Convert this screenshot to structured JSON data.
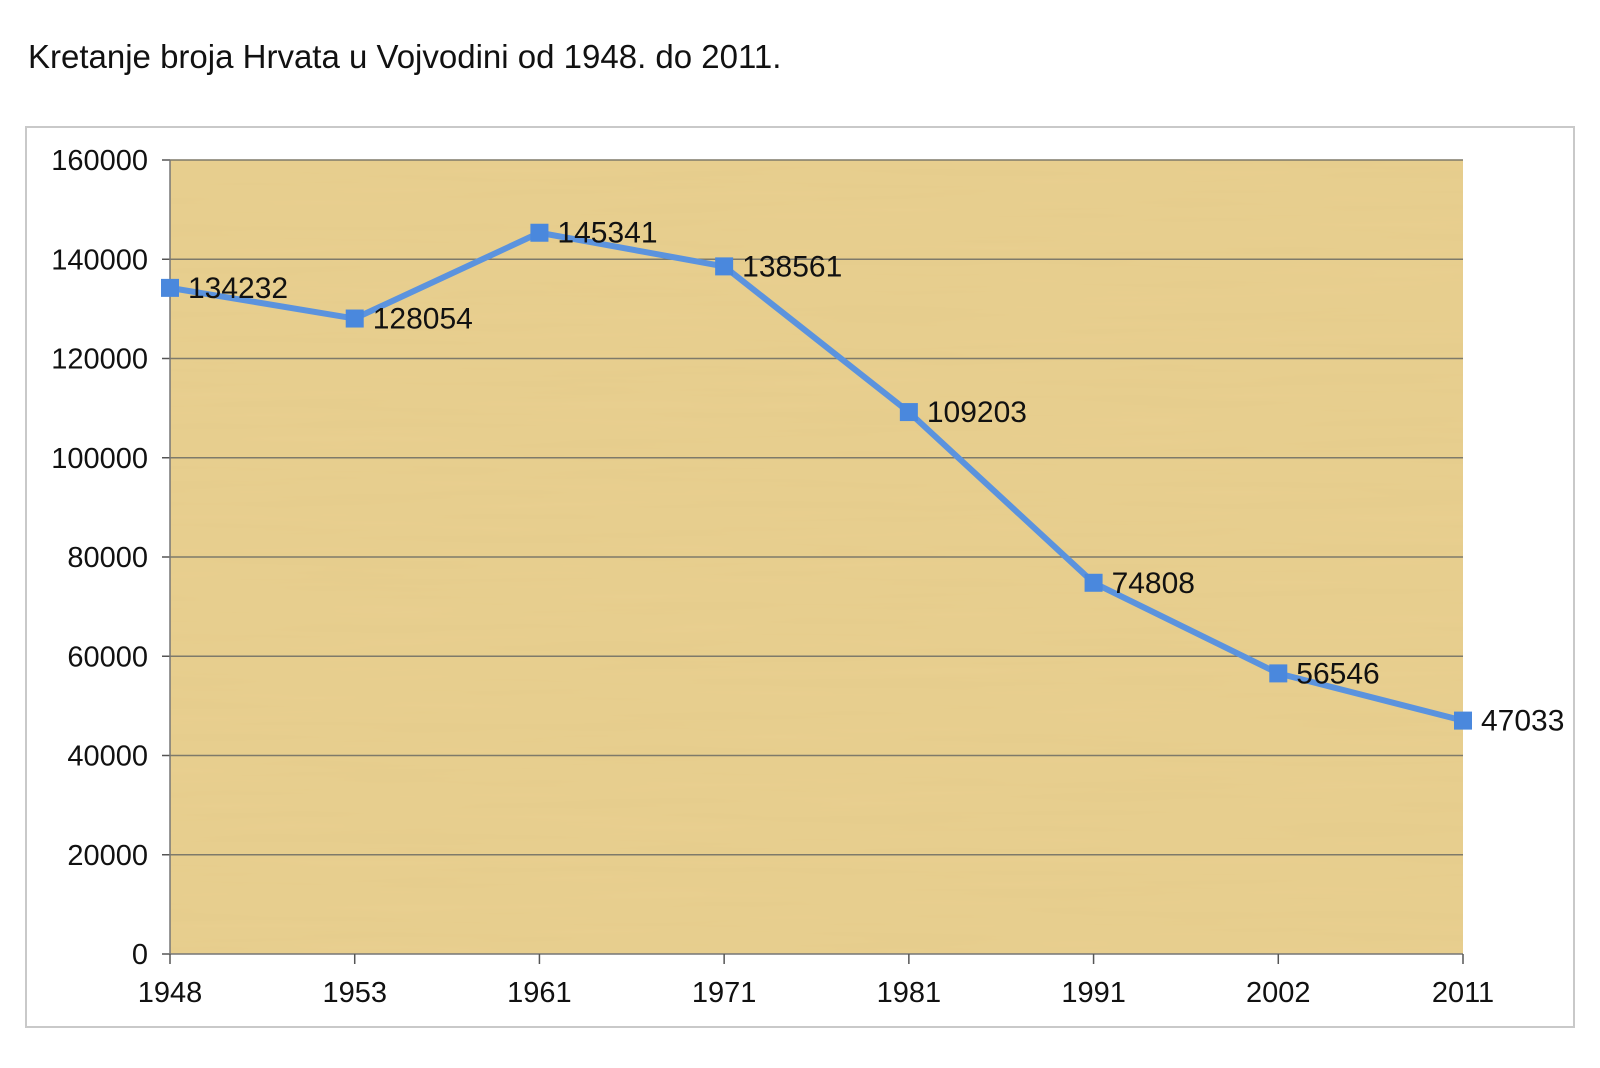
{
  "page": {
    "title": "Kretanje broja Hrvata u Vojvodini od 1948. do 2011."
  },
  "colors": {
    "line": "#5b93de",
    "marker": "#4a88dd",
    "gridline": "#7e7a6a",
    "plot_background": "#e8cf8f",
    "frame_border": "#c9c9c9"
  },
  "chart_data": {
    "type": "line",
    "title": "Kretanje broja Hrvata u Vojvodini od 1948. do 2011.",
    "categories": [
      "1948",
      "1953",
      "1961",
      "1971",
      "1981",
      "1991",
      "2002",
      "2011"
    ],
    "series": [
      {
        "values": [
          134232,
          128054,
          145341,
          138561,
          109203,
          74808,
          56546,
          47033
        ]
      }
    ],
    "ylim": [
      0,
      160000
    ],
    "yticks": [
      0,
      20000,
      40000,
      60000,
      80000,
      100000,
      120000,
      140000,
      160000
    ],
    "grid": true,
    "legend": "none",
    "data_labels": true,
    "marker": "square",
    "background": "papyrus texture"
  }
}
